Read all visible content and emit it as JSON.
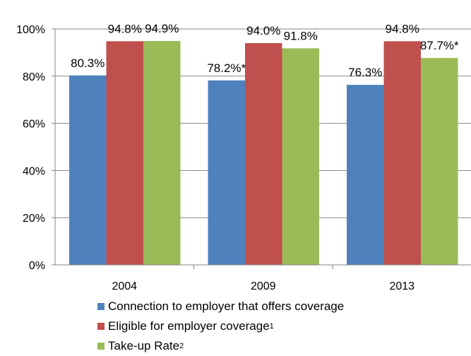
{
  "chart_data": {
    "type": "bar",
    "categories": [
      "2004",
      "2009",
      "2013"
    ],
    "series": [
      {
        "name": "Connection to employer that offers coverage",
        "sup": "",
        "color": "#4f81bd",
        "values": [
          80.3,
          78.2,
          76.3
        ],
        "labels": [
          "80.3%",
          "78.2%*",
          "76.3%"
        ]
      },
      {
        "name": "Eligible for employer coverage",
        "sup": "1",
        "color": "#c0504d",
        "values": [
          94.8,
          94.0,
          94.8
        ],
        "labels": [
          "94.8%",
          "94.0%",
          "94.8%"
        ]
      },
      {
        "name": "Take-up Rate ",
        "sup": "2",
        "color": "#9bbb59",
        "values": [
          94.9,
          91.8,
          87.7
        ],
        "labels": [
          "94.9%",
          "91.8%",
          "87.7%*"
        ]
      }
    ],
    "ylim": [
      0,
      100
    ],
    "yticks": [
      0,
      20,
      40,
      60,
      80,
      100
    ],
    "ytick_labels": [
      "0%",
      "20%",
      "40%",
      "60%",
      "80%",
      "100%"
    ],
    "grid": true,
    "legend_position": "bottom"
  }
}
